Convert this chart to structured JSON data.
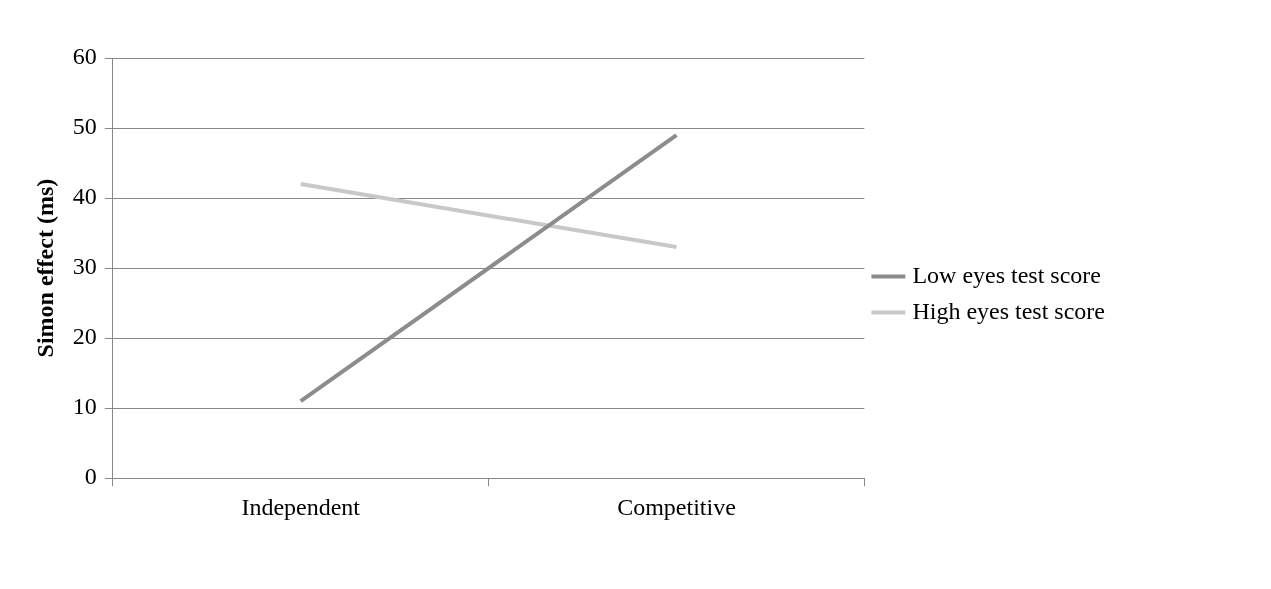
{
  "chart_data": {
    "type": "line",
    "ylabel": "Simon effect (ms)",
    "categories": [
      "Independent",
      "Competitive"
    ],
    "series": [
      {
        "name": "Low eyes test score",
        "color": "#8c8c8c",
        "values": [
          11,
          49
        ]
      },
      {
        "name": "High eyes test score",
        "color": "#c8c8c8",
        "values": [
          42,
          33
        ]
      }
    ],
    "ylim": [
      0,
      60
    ],
    "yticks": [
      0,
      10,
      20,
      30,
      40,
      50,
      60
    ],
    "grid": "y",
    "legend": "right",
    "marker": "none",
    "line_style": "solid"
  }
}
